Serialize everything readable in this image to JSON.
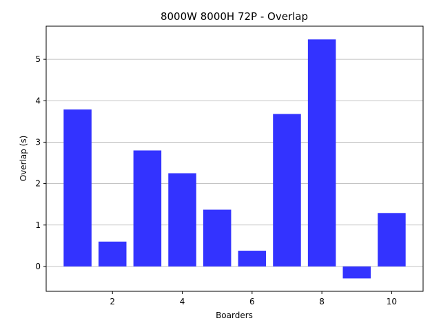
{
  "chart_data": {
    "type": "bar",
    "title": "8000W 8000H 72P - Overlap",
    "xlabel": "Boarders",
    "ylabel": "Overlap (s)",
    "x": [
      1,
      2,
      3,
      4,
      5,
      6,
      7,
      8,
      9,
      10
    ],
    "values": [
      3.79,
      0.6,
      2.8,
      2.25,
      1.37,
      0.38,
      3.68,
      5.48,
      -0.29,
      1.29
    ],
    "xticks": [
      2,
      4,
      6,
      8,
      10
    ],
    "yticks": [
      0,
      1,
      2,
      3,
      4,
      5
    ],
    "xlim": [
      0.1,
      10.9
    ],
    "ylim": [
      -0.6,
      5.8
    ],
    "bar_color": "#3333ff",
    "grid": "y",
    "legend": null
  }
}
